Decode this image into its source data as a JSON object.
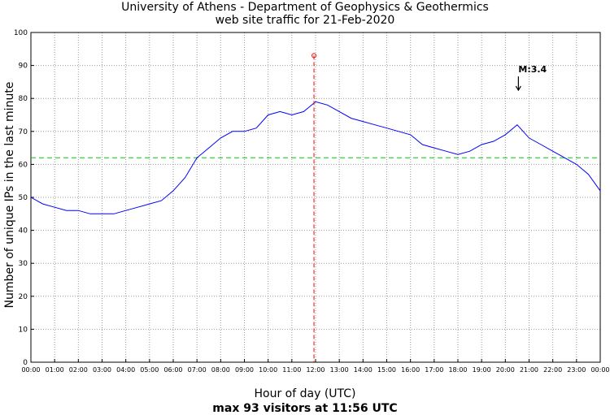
{
  "chart_data": {
    "type": "line",
    "title": "University of Athens - Department of Geophysics & Geothermics",
    "subtitle": "web site traffic for 21-Feb-2020",
    "xlabel": "Hour of day (UTC)",
    "ylabel": "Number of unique IPs in the last minute",
    "footer": "max 93 visitors at 11:56 UTC",
    "x_ticks": [
      "00:00",
      "01:00",
      "02:00",
      "03:00",
      "04:00",
      "05:00",
      "06:00",
      "07:00",
      "08:00",
      "09:00",
      "10:00",
      "11:00",
      "12:00",
      "13:00",
      "14:00",
      "15:00",
      "16:00",
      "17:00",
      "18:00",
      "19:00",
      "20:00",
      "21:00",
      "22:00",
      "23:00",
      "00:00"
    ],
    "y_ticks": [
      0,
      10,
      20,
      30,
      40,
      50,
      60,
      70,
      80,
      90,
      100
    ],
    "xlim_hours": [
      0,
      24
    ],
    "ylim": [
      0,
      100
    ],
    "grid": true,
    "series": [
      {
        "color": "#0000ff",
        "x_hours": [
          0,
          0.5,
          1,
          1.5,
          2,
          2.5,
          3,
          3.5,
          4,
          4.5,
          5,
          5.5,
          6,
          6.5,
          7,
          7.5,
          8,
          8.5,
          9,
          9.5,
          10,
          10.5,
          11,
          11.5,
          12,
          12.5,
          13,
          13.5,
          14,
          14.5,
          15,
          15.5,
          16,
          16.5,
          17,
          17.5,
          18,
          18.5,
          19,
          19.5,
          20,
          20.5,
          21,
          21.5,
          22,
          22.5,
          23,
          23.5,
          24
        ],
        "values": [
          50,
          48,
          47,
          46,
          46,
          45,
          45,
          45,
          46,
          47,
          48,
          49,
          52,
          56,
          62,
          65,
          68,
          70,
          70,
          71,
          75,
          76,
          75,
          76,
          79,
          78,
          76,
          74,
          73,
          72,
          71,
          70,
          69,
          66,
          65,
          64,
          63,
          64,
          66,
          67,
          69,
          72,
          68,
          66,
          64,
          62,
          60,
          57,
          52
        ]
      }
    ],
    "average_line": {
      "value": 62,
      "color": "#00cc00"
    },
    "max_marker": {
      "time": "11:56",
      "x_hours": 11.933,
      "value": 93,
      "color": "#ff0000"
    },
    "annotation": {
      "text": "M:3.4",
      "x_hours": 20.55,
      "value": 82
    }
  }
}
